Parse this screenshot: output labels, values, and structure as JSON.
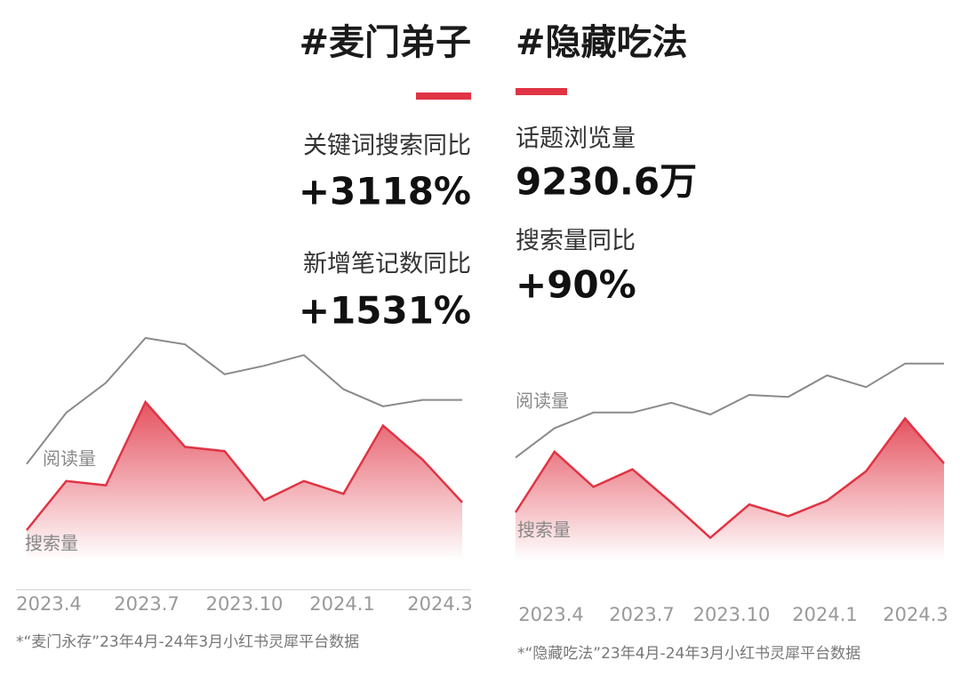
{
  "chart_data": [
    {
      "type": "line",
      "title": "#麦门弟子",
      "stats": [
        {
          "label": "关键词搜索同比",
          "value": "+3118%"
        },
        {
          "label": "新增笔记数同比",
          "value": "+1531%"
        }
      ],
      "categories": [
        "2023.4",
        null,
        null,
        "2023.7",
        null,
        null,
        "2023.10",
        null,
        null,
        "2024.1",
        null,
        "2024.3"
      ],
      "series": [
        {
          "name": "阅读量",
          "color": "#8a8a8a",
          "values": [
            41,
            65,
            79,
            100,
            97,
            83,
            87,
            92,
            76,
            68,
            71,
            71
          ]
        },
        {
          "name": "搜索量",
          "color": "#e03444",
          "values": [
            10,
            33,
            31,
            70,
            49,
            47,
            24,
            33,
            27,
            59,
            43,
            23
          ]
        }
      ],
      "ylim": [
        0,
        100
      ],
      "note": "*“麦门永存”23年4月-24年3月小红书灵犀平台数据"
    },
    {
      "type": "line",
      "title": "#隐藏吃法",
      "stats": [
        {
          "label": "话题浏览量",
          "value": "9230.6万"
        },
        {
          "label": "搜索量同比",
          "value": "+90%"
        }
      ],
      "categories": [
        "2023.4",
        null,
        null,
        "2023.7",
        null,
        null,
        "2023.10",
        null,
        null,
        "2024.1",
        null,
        "2024.3"
      ],
      "series": [
        {
          "name": "阅读量",
          "color": "#8a8a8a",
          "values": [
            48,
            63,
            71,
            71,
            76,
            70,
            80,
            79,
            90,
            84,
            96,
            96
          ]
        },
        {
          "name": "搜索量",
          "color": "#e03444",
          "values": [
            20,
            51,
            33,
            42,
            25,
            7,
            24,
            18,
            26,
            41,
            68,
            45
          ]
        }
      ],
      "ylim": [
        0,
        100
      ],
      "note": "*“隐藏吃法”23年4月-24年3月小红书灵犀平台数据"
    }
  ]
}
